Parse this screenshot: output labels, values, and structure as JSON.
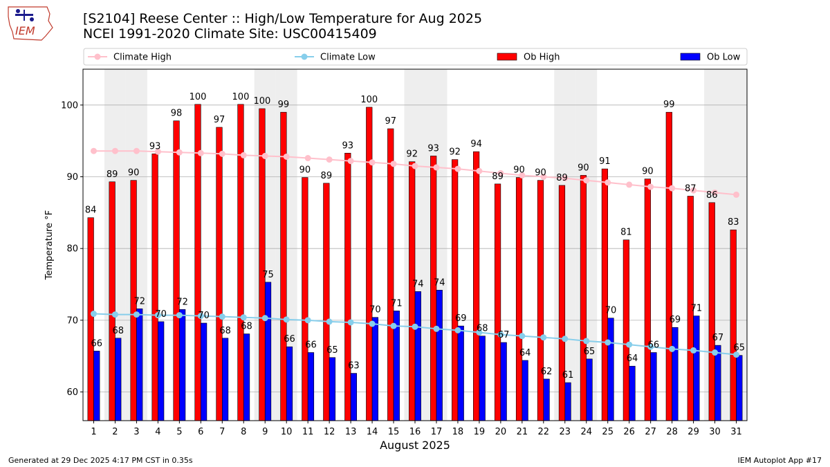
{
  "header": {
    "title_line1": "[S2104] Reese Center :: High/Low Temperature for Aug 2025",
    "title_line2": "NCEI 1991-2020 Climate Site: USC00415409",
    "logo_text": "IEM"
  },
  "footer": {
    "generated": "Generated at 29 Dec 2025 4:17 PM CST in 0.35s",
    "app": "IEM Autoplot App #17"
  },
  "colors": {
    "ob_high": "#ff0000",
    "ob_low": "#0000ff",
    "climate_high": "#ffc0cb",
    "climate_low": "#87ceeb",
    "weekend_band": "#eeeeee",
    "grid": "#b0b0b0"
  },
  "chart_data": {
    "type": "bar",
    "title": "[S2104] Reese Center :: High/Low Temperature for Aug 2025",
    "xlabel": "August 2025",
    "ylabel": "Temperature °F",
    "ylim": [
      56,
      105
    ],
    "yticks": [
      60,
      70,
      80,
      90,
      100
    ],
    "grid": true,
    "legend_position": "top",
    "categories": [
      "1",
      "2",
      "3",
      "4",
      "5",
      "6",
      "7",
      "8",
      "9",
      "10",
      "11",
      "12",
      "13",
      "14",
      "15",
      "16",
      "17",
      "18",
      "19",
      "20",
      "21",
      "22",
      "23",
      "24",
      "25",
      "26",
      "27",
      "28",
      "29",
      "30",
      "31"
    ],
    "shaded_days": [
      2,
      3,
      9,
      10,
      16,
      17,
      23,
      24,
      30,
      31
    ],
    "series": [
      {
        "name": "Ob High",
        "type": "bar",
        "values": [
          84.3,
          89.3,
          89.5,
          93.2,
          97.8,
          100.1,
          96.9,
          100.1,
          99.5,
          99,
          89.9,
          89.1,
          93.3,
          99.7,
          96.7,
          92.1,
          92.9,
          92.4,
          93.5,
          89,
          89.9,
          89.5,
          88.8,
          90.2,
          91.1,
          81.2,
          89.7,
          99,
          87.3,
          86.4,
          82.6
        ],
        "labels": [
          "84",
          "89",
          "90",
          "93",
          "98",
          "100",
          "97",
          "100",
          "100",
          "99",
          "90",
          "89",
          "93",
          "100",
          "97",
          "92",
          "93",
          "92",
          "94",
          "89",
          "90",
          "90",
          "89",
          "90",
          "91",
          "81",
          "90",
          "99",
          "87",
          "86",
          "83"
        ]
      },
      {
        "name": "Ob Low",
        "type": "bar",
        "values": [
          65.7,
          67.5,
          71.6,
          69.8,
          71.5,
          69.6,
          67.5,
          68.1,
          75.3,
          66.3,
          65.5,
          64.8,
          62.6,
          70.4,
          71.3,
          74,
          74.2,
          69.2,
          67.8,
          66.9,
          64.4,
          61.8,
          61.3,
          64.6,
          70.3,
          63.6,
          65.5,
          69,
          70.6,
          66.5,
          65.1
        ],
        "labels": [
          "66",
          "68",
          "72",
          "70",
          "72",
          "70",
          "68",
          "68",
          "75",
          "66",
          "66",
          "65",
          "63",
          "70",
          "71",
          "74",
          "74",
          "69",
          "68",
          "67",
          "64",
          "62",
          "61",
          "65",
          "70",
          "64",
          "66",
          "69",
          "71",
          "67",
          "65"
        ]
      },
      {
        "name": "Climate High",
        "type": "line",
        "values": [
          93.6,
          93.6,
          93.6,
          93.5,
          93.4,
          93.3,
          93.2,
          93,
          92.9,
          92.8,
          92.6,
          92.4,
          92.2,
          92,
          91.8,
          91.5,
          91.3,
          91.1,
          90.8,
          90.5,
          90.2,
          90,
          89.8,
          89.5,
          89.2,
          88.9,
          88.6,
          88.4,
          88.1,
          87.8,
          87.5
        ]
      },
      {
        "name": "Climate Low",
        "type": "line",
        "values": [
          70.9,
          70.8,
          70.8,
          70.7,
          70.7,
          70.6,
          70.5,
          70.4,
          70.3,
          70.1,
          70,
          69.8,
          69.7,
          69.5,
          69.2,
          69.1,
          68.8,
          68.6,
          68.3,
          68,
          67.8,
          67.6,
          67.4,
          67.1,
          66.9,
          66.6,
          66.3,
          66,
          65.8,
          65.5,
          65.2
        ]
      }
    ]
  }
}
